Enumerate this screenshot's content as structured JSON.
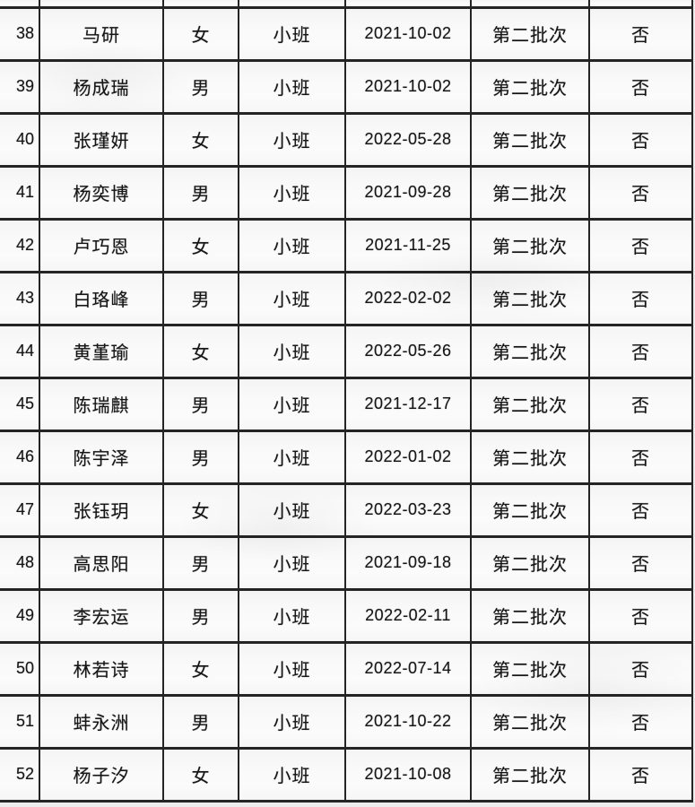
{
  "colors": {
    "border": "#242424",
    "cell_bg": "#f9f9f9",
    "page_bg": "#ececec",
    "text": "#151515"
  },
  "table": {
    "cell_keys": [
      "num",
      "name",
      "gender",
      "class_name",
      "date",
      "batch",
      "flag"
    ],
    "rows": [
      {
        "num": "38",
        "name": "马研",
        "gender": "女",
        "class_name": "小班",
        "date": "2021-10-02",
        "batch": "第二批次",
        "flag": "否"
      },
      {
        "num": "39",
        "name": "杨成瑞",
        "gender": "男",
        "class_name": "小班",
        "date": "2021-10-02",
        "batch": "第二批次",
        "flag": "否"
      },
      {
        "num": "40",
        "name": "张瑾妍",
        "gender": "女",
        "class_name": "小班",
        "date": "2022-05-28",
        "batch": "第二批次",
        "flag": "否"
      },
      {
        "num": "41",
        "name": "杨奕博",
        "gender": "男",
        "class_name": "小班",
        "date": "2021-09-28",
        "batch": "第二批次",
        "flag": "否"
      },
      {
        "num": "42",
        "name": "卢巧恩",
        "gender": "女",
        "class_name": "小班",
        "date": "2021-11-25",
        "batch": "第二批次",
        "flag": "否"
      },
      {
        "num": "43",
        "name": "白珞峰",
        "gender": "男",
        "class_name": "小班",
        "date": "2022-02-02",
        "batch": "第二批次",
        "flag": "否"
      },
      {
        "num": "44",
        "name": "黄堇瑜",
        "gender": "女",
        "class_name": "小班",
        "date": "2022-05-26",
        "batch": "第二批次",
        "flag": "否"
      },
      {
        "num": "45",
        "name": "陈瑞麒",
        "gender": "男",
        "class_name": "小班",
        "date": "2021-12-17",
        "batch": "第二批次",
        "flag": "否"
      },
      {
        "num": "46",
        "name": "陈宇泽",
        "gender": "男",
        "class_name": "小班",
        "date": "2022-01-02",
        "batch": "第二批次",
        "flag": "否"
      },
      {
        "num": "47",
        "name": "张钰玥",
        "gender": "女",
        "class_name": "小班",
        "date": "2022-03-23",
        "batch": "第二批次",
        "flag": "否"
      },
      {
        "num": "48",
        "name": "高思阳",
        "gender": "男",
        "class_name": "小班",
        "date": "2021-09-18",
        "batch": "第二批次",
        "flag": "否"
      },
      {
        "num": "49",
        "name": "李宏运",
        "gender": "男",
        "class_name": "小班",
        "date": "2022-02-11",
        "batch": "第二批次",
        "flag": "否"
      },
      {
        "num": "50",
        "name": "林若诗",
        "gender": "女",
        "class_name": "小班",
        "date": "2022-07-14",
        "batch": "第二批次",
        "flag": "否"
      },
      {
        "num": "51",
        "name": "蚌永洲",
        "gender": "男",
        "class_name": "小班",
        "date": "2021-10-22",
        "batch": "第二批次",
        "flag": "否"
      },
      {
        "num": "52",
        "name": "杨子汐",
        "gender": "女",
        "class_name": "小班",
        "date": "2021-10-08",
        "batch": "第二批次",
        "flag": "否"
      }
    ]
  }
}
